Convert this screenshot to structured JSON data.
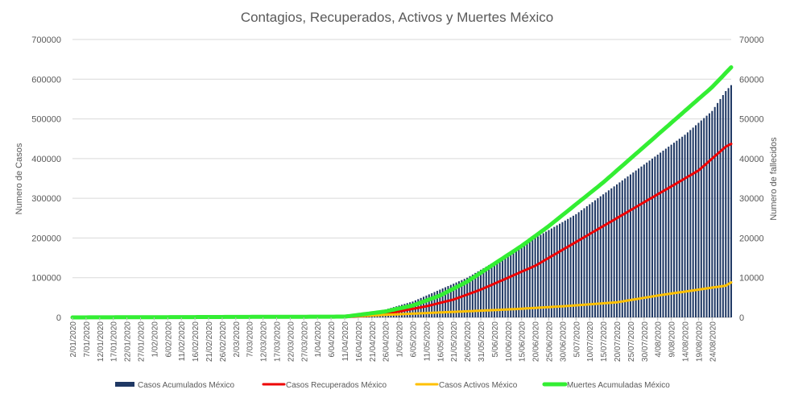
{
  "chart_data": {
    "type": "bar+line",
    "title": "Contagios, Recuperados, Activos y Muertes México",
    "ylabel_left": "Numero de Casos",
    "ylabel_right": "Numero de fallecidos",
    "ylim_left": [
      0,
      700000
    ],
    "ylim_right": [
      0,
      70000
    ],
    "left_ticks": [
      "0",
      "100000",
      "200000",
      "300000",
      "400000",
      "500000",
      "600000",
      "700000"
    ],
    "right_ticks": [
      "0",
      "10000",
      "20000",
      "30000",
      "40000",
      "50000",
      "60000",
      "70000"
    ],
    "x_tick_labels": [
      "2/01/2020",
      "7/01/2020",
      "12/01/2020",
      "17/01/2020",
      "22/01/2020",
      "27/01/2020",
      "1/02/2020",
      "6/02/2020",
      "11/02/2020",
      "16/02/2020",
      "21/02/2020",
      "26/02/2020",
      "2/03/2020",
      "7/03/2020",
      "12/03/2020",
      "17/03/2020",
      "22/03/2020",
      "27/03/2020",
      "1/04/2020",
      "6/04/2020",
      "11/04/2020",
      "16/04/2020",
      "21/04/2020",
      "26/04/2020",
      "1/05/2020",
      "6/05/2020",
      "11/05/2020",
      "16/05/2020",
      "21/05/2020",
      "26/05/2020",
      "31/05/2020",
      "5/06/2020",
      "10/06/2020",
      "15/06/2020",
      "20/06/2020",
      "25/06/2020",
      "30/06/2020",
      "5/07/2020",
      "10/07/2020",
      "15/07/2020",
      "20/07/2020",
      "25/07/2020",
      "30/07/2020",
      "4/08/2020",
      "9/08/2020",
      "14/08/2020",
      "19/08/2020",
      "24/08/2020"
    ],
    "x_range_days": [
      0,
      242
    ],
    "grid": true,
    "legend_position": "bottom",
    "series": [
      {
        "name": "Casos Acumulados México",
        "type": "bar",
        "axis": "left",
        "color": "#1f3864",
        "points": [
          [
            0,
            0
          ],
          [
            60,
            0
          ],
          [
            75,
            300
          ],
          [
            85,
            2000
          ],
          [
            95,
            5000
          ],
          [
            105,
            9000
          ],
          [
            115,
            20000
          ],
          [
            125,
            40000
          ],
          [
            135,
            70000
          ],
          [
            145,
            100000
          ],
          [
            155,
            140000
          ],
          [
            165,
            180000
          ],
          [
            175,
            220000
          ],
          [
            185,
            260000
          ],
          [
            195,
            310000
          ],
          [
            205,
            360000
          ],
          [
            215,
            410000
          ],
          [
            225,
            460000
          ],
          [
            235,
            520000
          ],
          [
            240,
            570000
          ],
          [
            242,
            585000
          ]
        ]
      },
      {
        "name": "Casos Recuperados México",
        "type": "line",
        "axis": "left",
        "color": "#ee0000",
        "points": [
          [
            0,
            0
          ],
          [
            100,
            500
          ],
          [
            110,
            5000
          ],
          [
            120,
            15000
          ],
          [
            130,
            28000
          ],
          [
            140,
            45000
          ],
          [
            150,
            70000
          ],
          [
            160,
            100000
          ],
          [
            170,
            130000
          ],
          [
            180,
            170000
          ],
          [
            190,
            210000
          ],
          [
            200,
            250000
          ],
          [
            210,
            290000
          ],
          [
            220,
            330000
          ],
          [
            230,
            370000
          ],
          [
            240,
            430000
          ],
          [
            242,
            437000
          ]
        ]
      },
      {
        "name": "Casos Activos México",
        "type": "line",
        "axis": "left",
        "color": "#ffc000",
        "points": [
          [
            0,
            0
          ],
          [
            80,
            500
          ],
          [
            100,
            2000
          ],
          [
            120,
            8000
          ],
          [
            140,
            14000
          ],
          [
            160,
            20000
          ],
          [
            180,
            28000
          ],
          [
            200,
            38000
          ],
          [
            215,
            55000
          ],
          [
            230,
            70000
          ],
          [
            240,
            80000
          ],
          [
            242,
            88000
          ]
        ]
      },
      {
        "name": "Muertes Acumuladas México",
        "type": "line",
        "axis": "right",
        "color": "#33ee33",
        "points": [
          [
            0,
            0
          ],
          [
            100,
            200
          ],
          [
            115,
            1500
          ],
          [
            125,
            3000
          ],
          [
            135,
            5500
          ],
          [
            145,
            9000
          ],
          [
            155,
            13500
          ],
          [
            165,
            18000
          ],
          [
            175,
            23000
          ],
          [
            185,
            28500
          ],
          [
            195,
            34000
          ],
          [
            205,
            40000
          ],
          [
            215,
            46000
          ],
          [
            225,
            52000
          ],
          [
            235,
            58000
          ],
          [
            242,
            63000
          ]
        ]
      }
    ]
  }
}
